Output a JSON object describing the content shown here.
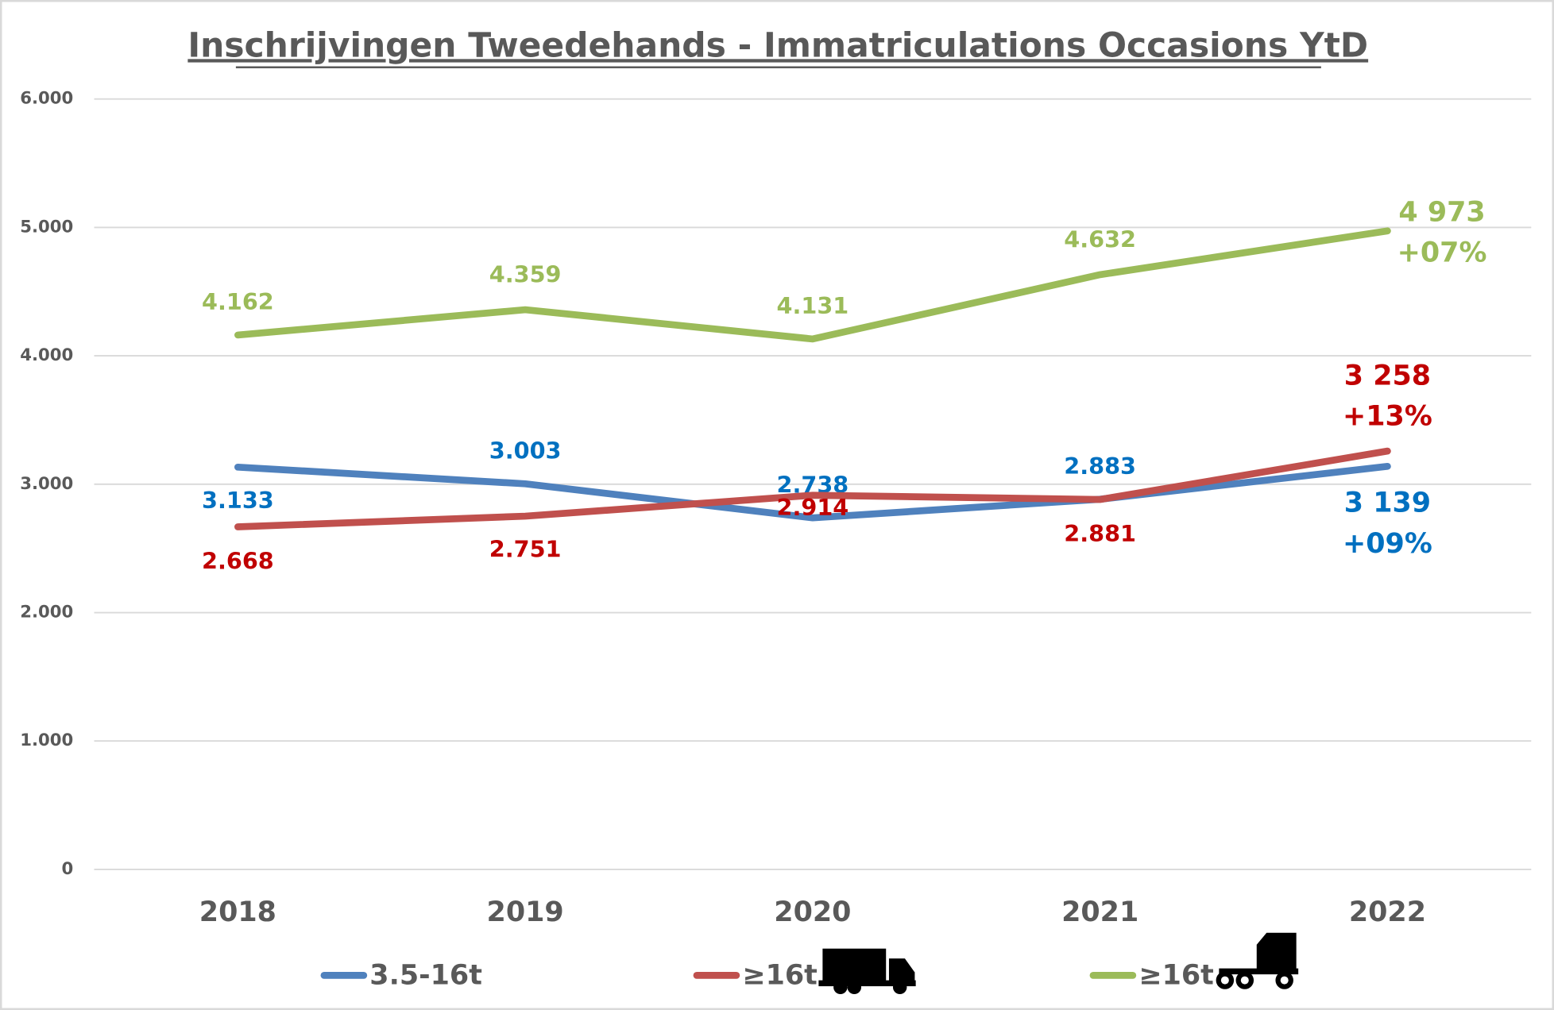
{
  "chart_data": {
    "type": "line",
    "title": "Inschrijvingen Tweedehands - Immatriculations Occasions YtD",
    "categories": [
      "2018",
      "2019",
      "2020",
      "2021",
      "2022"
    ],
    "series": [
      {
        "name": "3.5-16t",
        "color": "#4f81bd",
        "label_color": "#0070c0",
        "values": [
          3133,
          3003,
          2738,
          2883,
          3139
        ],
        "value_labels": [
          "3.133",
          "3.003",
          "2.738",
          "2.883",
          "3 139"
        ],
        "change_label": "+09%"
      },
      {
        "name": "≥16t",
        "color": "#c0504d",
        "label_color": "#c00000",
        "values": [
          2668,
          2751,
          2914,
          2881,
          3258
        ],
        "value_labels": [
          "2.668",
          "2.751",
          "2.914",
          "2.881",
          "3 258"
        ],
        "change_label": "+13%"
      },
      {
        "name": "≥16t",
        "color": "#9bbb59",
        "label_color": "#9bbb59",
        "values": [
          4162,
          4359,
          4131,
          4632,
          4973
        ],
        "value_labels": [
          "4.162",
          "4.359",
          "4.131",
          "4.632",
          "4 973"
        ],
        "change_label": "+07%"
      }
    ],
    "ylim": [
      0,
      6000
    ],
    "yticks": [
      0,
      {
        "value": 1000,
        "label": "1.000"
      },
      {
        "value": 2000,
        "label": "2.000"
      },
      {
        "value": 3000,
        "label": "3.000"
      },
      {
        "value": 4000,
        "label": "4.000"
      },
      {
        "value": 5000,
        "label": "5.000"
      },
      {
        "value": 6000,
        "label": "6.000"
      }
    ],
    "grid": true,
    "legend": "bottom"
  }
}
